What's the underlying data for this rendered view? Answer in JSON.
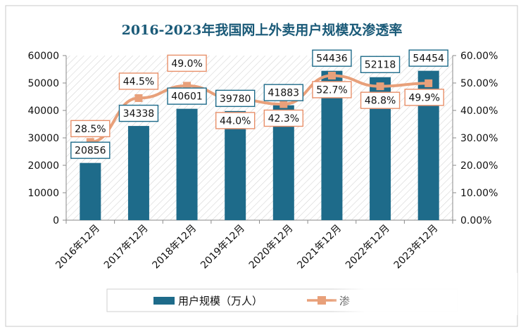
{
  "colors": {
    "bar": "#1e6b8a",
    "line": "#e8a07a",
    "bar_label_border": "#1e6b8a",
    "line_label_border": "#e8906a",
    "title": "#1a5a78",
    "frame": "#c8c8c8",
    "hatch": "#dcdcdc"
  },
  "chart_data": {
    "type": "bar",
    "title": "2016-2023年我国网上外卖用户规模及渗透率",
    "categories": [
      "2016年12月",
      "2017年12月",
      "2018年12月",
      "2019年12月",
      "2020年12月",
      "2021年12月",
      "2022年12月",
      "2023年12月"
    ],
    "series": [
      {
        "name": "用户规模（万人）",
        "type": "bar",
        "axis": "left",
        "values": [
          20856,
          34338,
          40601,
          39780,
          41883,
          54436,
          52118,
          54454
        ],
        "labels": [
          "20856",
          "34338",
          "40601",
          "39780",
          "41883",
          "54436",
          "52118",
          "54454"
        ]
      },
      {
        "name": "渗透率",
        "type": "line",
        "axis": "right",
        "values": [
          28.5,
          44.5,
          49.0,
          44.0,
          42.3,
          52.7,
          48.8,
          49.9
        ],
        "labels": [
          "28.5%",
          "44.5%",
          "49.0%",
          "44.0%",
          "42.3%",
          "52.7%",
          "48.8%",
          "49.9%"
        ]
      }
    ],
    "y_left": {
      "min": 0,
      "max": 60000,
      "ticks": [
        "0",
        "10000",
        "20000",
        "30000",
        "40000",
        "50000",
        "60000"
      ]
    },
    "y_right": {
      "min": 0,
      "max": 60,
      "ticks": [
        "0.00%",
        "10.00%",
        "20.00%",
        "30.00%",
        "40.00%",
        "50.00%",
        "60.00%"
      ]
    },
    "legend": {
      "position": "bottom",
      "bar_label": "用户规模（万人）",
      "line_label_visible": "渗"
    }
  }
}
